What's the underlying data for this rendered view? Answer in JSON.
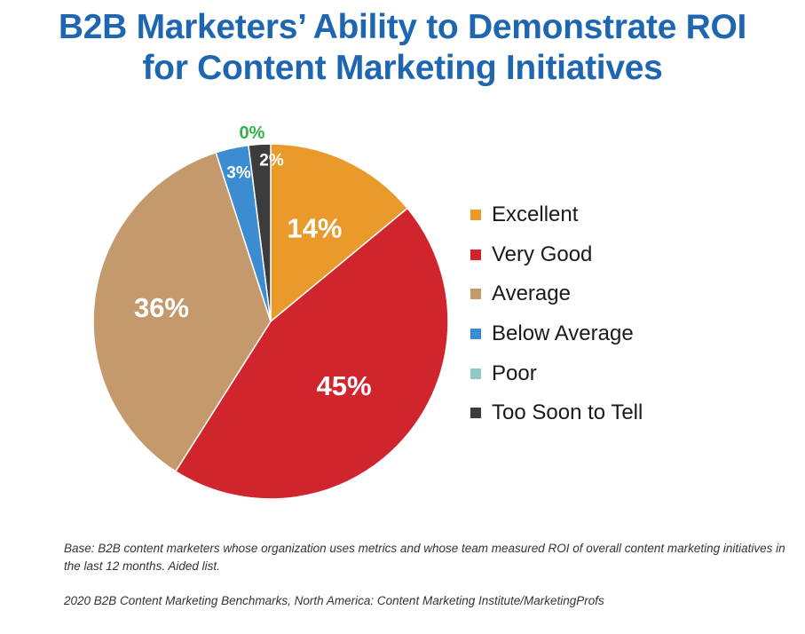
{
  "chart_data": {
    "type": "pie",
    "title": "B2B Marketers’ Ability to Demonstrate ROI for Content Marketing Initiatives",
    "title_lines": [
      "B2B Marketers’ Ability to Demonstrate ROI",
      "for Content Marketing Initiatives"
    ],
    "unit": "%",
    "slices": [
      {
        "name": "Excellent",
        "value": 14,
        "label": "14%",
        "color": "#ea9a2a"
      },
      {
        "name": "Very Good",
        "value": 45,
        "label": "45%",
        "color": "#d0252d"
      },
      {
        "name": "Average",
        "value": 36,
        "label": "36%",
        "color": "#c49a6c"
      },
      {
        "name": "Below Average",
        "value": 3,
        "label": "3%",
        "color": "#3b8cd1"
      },
      {
        "name": "Poor",
        "value": 0,
        "label": "0%",
        "color": "#8ec9c6"
      },
      {
        "name": "Too Soon to Tell",
        "value": 2,
        "label": "2%",
        "color": "#3c3c3c"
      }
    ],
    "zero_label_color": "#2fb24a",
    "legend_position": "right"
  },
  "notes": {
    "base": "Base: B2B content marketers whose organization uses metrics and whose team measured ROI of overall content marketing initiatives in the last 12 months. Aided list.",
    "source": "2020 B2B Content Marketing Benchmarks, North America: Content Marketing Institute/MarketingProfs"
  }
}
